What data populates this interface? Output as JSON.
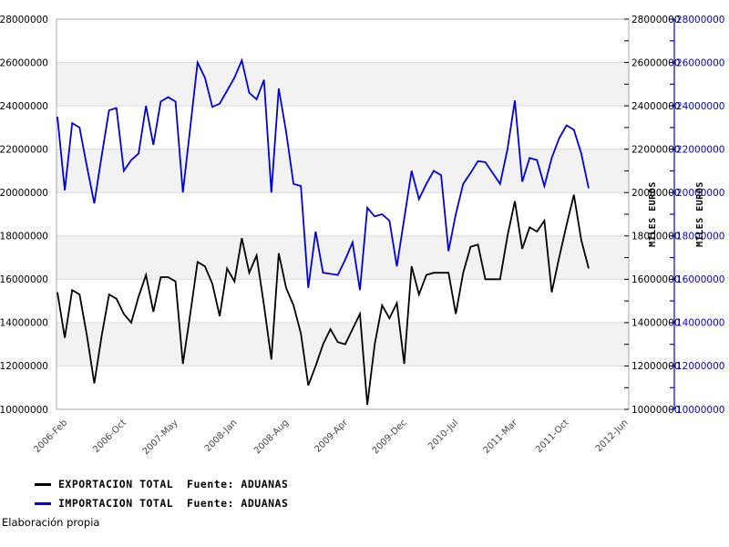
{
  "chart_data": {
    "type": "line",
    "title": "",
    "x_axis": {
      "tick_labels": [
        "2006-Feb",
        "2006-Oct",
        "2007-May",
        "2008-Jan",
        "2008-Aug",
        "2009-Apr",
        "2009-Dec",
        "2010-Jul",
        "2011-Mar",
        "2011-Oct",
        "2012-Jun"
      ],
      "tick_months_from_jan2006": [
        1,
        9,
        16,
        24,
        31,
        39,
        47,
        54,
        62,
        69,
        77
      ],
      "months_span": 77,
      "label_rotation_deg": 45
    },
    "y_axis": {
      "range": [
        10000000,
        28000000
      ],
      "tick_step": 2000000,
      "tick_labels": [
        "28000000",
        "26000000",
        "24000000",
        "22000000",
        "20000000",
        "18000000",
        "16000000",
        "14000000",
        "12000000",
        "10000000"
      ],
      "minor_tick_step": 1000000,
      "right_axis_1_title": "MILES EUROS",
      "right_axis_2_title": "MILES EUROS",
      "alternating_bands": true
    },
    "series": [
      {
        "name": "EXPORTACION TOTAL  Fuente: ADUANAS",
        "color": "#000000",
        "start_month": "2006-Jan",
        "values": [
          15400000,
          13300000,
          15500000,
          15300000,
          13400000,
          11200000,
          13400000,
          15300000,
          15100000,
          14400000,
          14000000,
          15200000,
          16200000,
          14500000,
          16100000,
          16100000,
          15900000,
          12100000,
          14400000,
          16800000,
          16600000,
          15800000,
          14300000,
          16500000,
          15900000,
          17900000,
          16300000,
          17100000,
          14800000,
          12300000,
          17200000,
          15600000,
          14800000,
          13500000,
          11100000,
          12000000,
          13000000,
          13700000,
          13100000,
          13000000,
          13700000,
          14400000,
          10200000,
          13000000,
          14800000,
          14200000,
          14900000,
          12100000,
          16600000,
          15300000,
          16200000,
          16300000,
          16300000,
          16300000,
          14400000,
          16300000,
          17500000,
          17600000,
          16000000,
          16000000,
          16000000,
          18000000,
          19600000,
          17400000,
          18400000,
          18200000,
          18700000,
          15400000,
          17000000,
          18500000,
          19900000,
          17800000,
          16500000
        ]
      },
      {
        "name": "IMPORTACION TOTAL  Fuente: ADUANAS",
        "color": "#0000dd",
        "start_month": "2006-Jan",
        "values": [
          23500000,
          20100000,
          23200000,
          23000000,
          21200000,
          19500000,
          21700000,
          23800000,
          23900000,
          21000000,
          21500000,
          21800000,
          24000000,
          22200000,
          24200000,
          24400000,
          24200000,
          20000000,
          23000000,
          26000000,
          25300000,
          23950000,
          24100000,
          24700000,
          25300000,
          26100000,
          24600000,
          24300000,
          25200000,
          20000000,
          24800000,
          22800000,
          20400000,
          20300000,
          15600000,
          18200000,
          16300000,
          16250000,
          16200000,
          16900000,
          17700000,
          15500000,
          19300000,
          18900000,
          19000000,
          18700000,
          16600000,
          18800000,
          21000000,
          19700000,
          20400000,
          21000000,
          20800000,
          17300000,
          19000000,
          20400000,
          20900000,
          21450000,
          21400000,
          20900000,
          20400000,
          22000000,
          24250000,
          20500000,
          21600000,
          21500000,
          20300000,
          21600000,
          22500000,
          23100000,
          22900000,
          21800000,
          20200000
        ]
      }
    ],
    "legend_position": "bottom-left",
    "grid": true
  },
  "legend": {
    "items": [
      {
        "label": "EXPORTACION TOTAL  Fuente: ADUANAS",
        "color": "#000000"
      },
      {
        "label": "IMPORTACION TOTAL  Fuente: ADUANAS",
        "color": "#0000dd"
      }
    ]
  },
  "footer": {
    "credit": "Elaboración propia"
  },
  "colors": {
    "export_line": "#000000",
    "import_line": "#0000dd",
    "band_gray": "#f2f2f2",
    "gridline": "#dcdcdc",
    "plot_border": "#a8a8a8",
    "x_label_text": "#464646",
    "axis_text": "#000000"
  }
}
